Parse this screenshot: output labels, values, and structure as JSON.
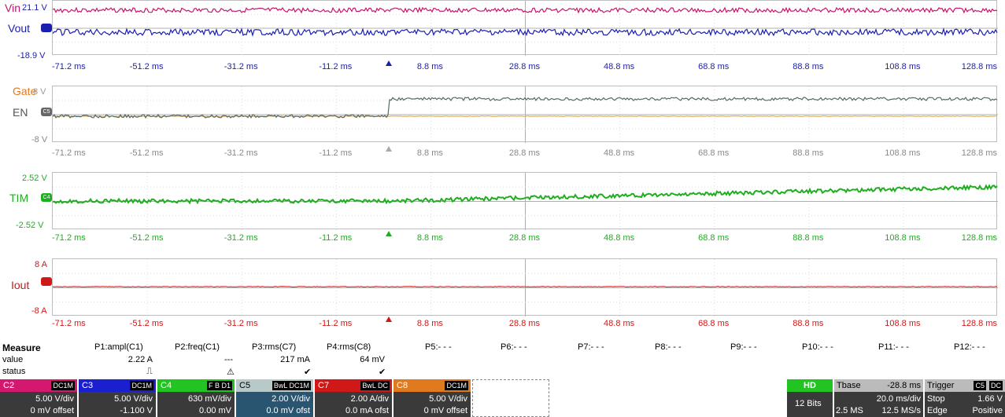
{
  "x_ticks": [
    "-71.2 ms",
    "-51.2 ms",
    "-31.2 ms",
    "-11.2 ms",
    "8.8 ms",
    "28.8 ms",
    "48.8 ms",
    "68.8 ms",
    "88.8 ms",
    "108.8 ms",
    "128.8 ms"
  ],
  "panes": [
    {
      "labels": [
        {
          "text": "Vin",
          "color": "#c0156e"
        },
        {
          "text": "Vout",
          "color": "#1a1fb0"
        }
      ],
      "top_scale": "21.1 V",
      "bottom_scale": "-18.9 V",
      "scale_color": "#1a1fb0",
      "tick_color": "#1a1fb0",
      "marker_color": "#1a1fb0"
    },
    {
      "labels": [
        {
          "text": "Gate",
          "color": "#e07a1f"
        },
        {
          "text": "EN",
          "color": "#555555"
        }
      ],
      "top_scale": "8 V",
      "bottom_scale": "-8 V",
      "scale_color": "#888888",
      "tick_color": "#888888",
      "marker_color": "#aaaaaa",
      "tag": "C5"
    },
    {
      "labels": [
        {
          "text": "TIM",
          "color": "#1fae1f"
        }
      ],
      "top_scale": "2.52 V",
      "bottom_scale": "-2.52 V",
      "scale_color": "#1fae1f",
      "tick_color": "#1fae1f",
      "marker_color": "#1fae1f",
      "tag": "C4"
    },
    {
      "labels": [
        {
          "text": "Iout",
          "color": "#d01818"
        }
      ],
      "top_scale": "8 A",
      "bottom_scale": "-8 A",
      "scale_color": "#d01818",
      "tick_color": "#d01818",
      "marker_color": "#d01818"
    }
  ],
  "measure": {
    "title": "Measure",
    "row_labels": [
      "value",
      "status"
    ],
    "params": [
      {
        "name": "P1:ampl(C1)",
        "value": "2.22 A",
        "status": "⎍"
      },
      {
        "name": "P2:freq(C1)",
        "value": "---",
        "status": "⚠"
      },
      {
        "name": "P3:rms(C7)",
        "value": "217 mA",
        "status": "✔"
      },
      {
        "name": "P4:rms(C8)",
        "value": "64 mV",
        "status": "✔"
      },
      {
        "name": "P5:- - -",
        "value": "",
        "status": ""
      },
      {
        "name": "P6:- - -",
        "value": "",
        "status": ""
      },
      {
        "name": "P7:- - -",
        "value": "",
        "status": ""
      },
      {
        "name": "P8:- - -",
        "value": "",
        "status": ""
      },
      {
        "name": "P9:- - -",
        "value": "",
        "status": ""
      },
      {
        "name": "P10:- - -",
        "value": "",
        "status": ""
      },
      {
        "name": "P11:- - -",
        "value": "",
        "status": ""
      },
      {
        "name": "P12:- - -",
        "value": "",
        "status": ""
      }
    ]
  },
  "channels": [
    {
      "name": "C2",
      "badge": "DC1M",
      "vdiv": "5.00 V/div",
      "offset": "0 mV offset",
      "color": "#d4176f",
      "hdr": "#d4176f"
    },
    {
      "name": "C3",
      "badge": "DC1M",
      "vdiv": "5.00 V/div",
      "offset": "-1.100 V",
      "color": "#1a1fd0",
      "hdr": "#1a1fd0"
    },
    {
      "name": "C4",
      "badge": "F B D1",
      "vdiv": "630 mV/div",
      "offset": "0.00 mV",
      "color": "#22c422",
      "hdr": "#22c422"
    },
    {
      "name": "C5",
      "badge": "BwL DC1M",
      "vdiv": "2.00 V/div",
      "offset": "0.0 mV ofst",
      "color": "#8fb0b0",
      "hdr": "#b7c9c9"
    },
    {
      "name": "C7",
      "badge": "BwL DC",
      "vdiv": "2.00 A/div",
      "offset": "0.0 mA ofst",
      "color": "#d01818",
      "hdr": "#d01818"
    },
    {
      "name": "C8",
      "badge": "DC1M",
      "vdiv": "5.00 V/div",
      "offset": "0 mV offset",
      "color": "#e07a1f",
      "hdr": "#e07a1f"
    }
  ],
  "hd": {
    "label": "HD",
    "bits": "12 Bits"
  },
  "timebase": {
    "label": "Tbase",
    "delay": "-28.8 ms",
    "div": "20.0 ms/div",
    "samples": "2.5 MS",
    "rate": "12.5 MS/s"
  },
  "trigger": {
    "label": "Trigger",
    "src": "C5",
    "coupling": "DC",
    "mode": "Stop",
    "level": "1.66 V",
    "type": "Edge",
    "slope": "Positive"
  }
}
